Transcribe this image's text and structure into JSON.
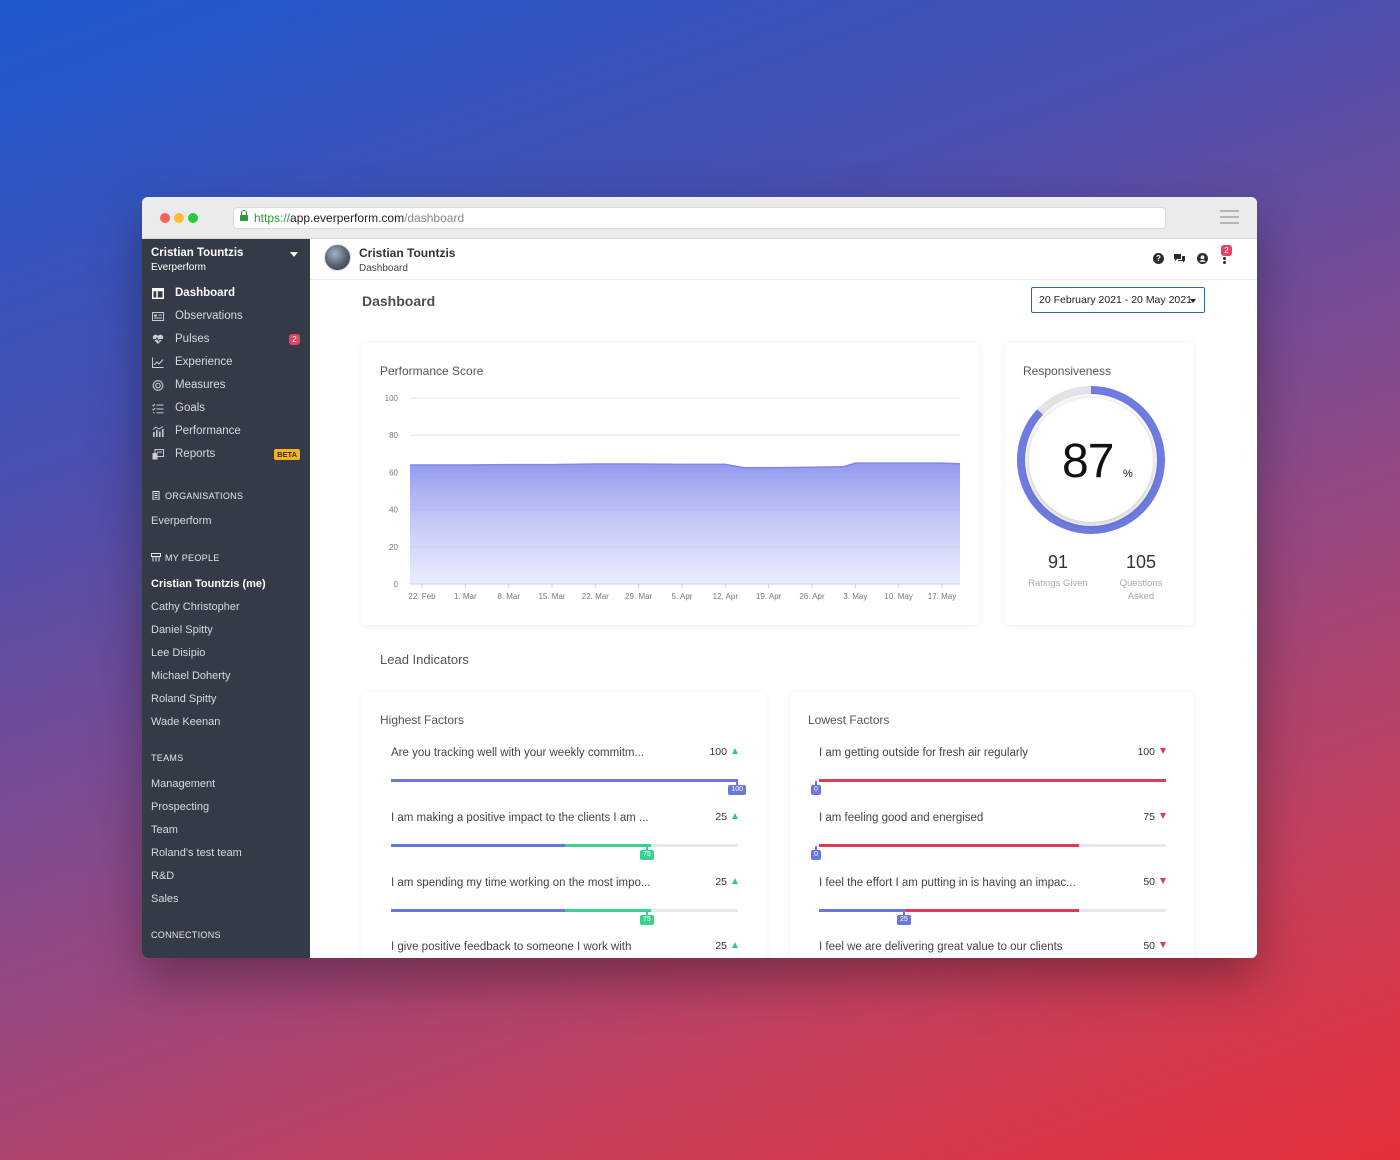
{
  "browser": {
    "url_scheme": "https://",
    "url_host": "app.everperform.com",
    "url_path": "/dashboard"
  },
  "sidebar": {
    "user_name": "Cristian Tountzis",
    "org_name": "Everperform",
    "nav": [
      {
        "label": "Dashboard",
        "icon": "dashboard-icon",
        "active": true
      },
      {
        "label": "Observations",
        "icon": "observations-icon"
      },
      {
        "label": "Pulses",
        "icon": "heart-pulse-icon",
        "badge": "2"
      },
      {
        "label": "Experience",
        "icon": "line-chart-icon"
      },
      {
        "label": "Measures",
        "icon": "target-icon"
      },
      {
        "label": "Goals",
        "icon": "list-check-icon"
      },
      {
        "label": "Performance",
        "icon": "bar-chart-icon"
      },
      {
        "label": "Reports",
        "icon": "reports-icon",
        "tag": "BETA"
      }
    ],
    "organisations_heading": "ORGANISATIONS",
    "organisations": [
      "Everperform"
    ],
    "people_heading": "MY PEOPLE",
    "people": [
      "Cristian Tountzis (me)",
      "Cathy Christopher",
      "Daniel Spitty",
      "Lee Disipio",
      "Michael Doherty",
      "Roland Spitty",
      "Wade Keenan"
    ],
    "teams_heading": "TEAMS",
    "teams": [
      "Management",
      "Prospecting",
      "Team",
      "Roland's test team",
      "R&D",
      "Sales"
    ],
    "connections_heading": "CONNECTIONS"
  },
  "topbar": {
    "name": "Cristian Tountzis",
    "subtitle": "Dashboard",
    "notification_count": "2"
  },
  "page": {
    "title": "Dashboard",
    "date_range": "20 February 2021 - 20 May 2021"
  },
  "performance": {
    "title": "Performance Score"
  },
  "chart_data": {
    "type": "area",
    "title": "Performance Score",
    "xlabel": "",
    "ylabel": "",
    "ylim": [
      0,
      100
    ],
    "yticks": [
      "100",
      "80",
      "60",
      "40",
      "20",
      "0"
    ],
    "xticks": [
      "22. Feb",
      "1. Mar",
      "8. Mar",
      "15. Mar",
      "22. Mar",
      "29. Mar",
      "5. Apr",
      "12. Apr",
      "19. Apr",
      "26. Apr",
      "3. May",
      "10. May",
      "17. May"
    ],
    "x": [
      "20. Feb",
      "22. Feb",
      "1. Mar",
      "8. Mar",
      "15. Mar",
      "22. Mar",
      "29. Mar",
      "5. Apr",
      "12. Apr",
      "15. Apr",
      "19. Apr",
      "26. Apr",
      "1. May",
      "3. May",
      "10. May",
      "17. May",
      "20. May"
    ],
    "values": [
      64,
      64,
      64,
      64.2,
      64.2,
      64.5,
      64.5,
      64.3,
      64.3,
      62.5,
      62.5,
      62.8,
      63,
      65,
      65,
      65,
      64.7
    ],
    "color": "#7d86ea",
    "grid": true
  },
  "responsiveness": {
    "title": "Responsiveness",
    "value": "87",
    "unit": "%",
    "fraction": 0.87,
    "ratings_given": "91",
    "ratings_label": "Ratings Given",
    "questions_asked": "105",
    "questions_label_1": "Questions",
    "questions_label_2": "Asked"
  },
  "lead_indicators": {
    "title": "Lead Indicators",
    "highest": {
      "title": "Highest Factors",
      "items": [
        {
          "text": "Are you tracking well with your weekly commitm...",
          "score": "100",
          "prev": null,
          "current": 100,
          "marker": "100"
        },
        {
          "text": "I am making a positive impact to the clients I am ...",
          "score": "25",
          "prev": 50,
          "current": 75,
          "marker": "75"
        },
        {
          "text": "I am spending my time working on the most impo...",
          "score": "25",
          "prev": 50,
          "current": 75,
          "marker": "75"
        },
        {
          "text": "I give positive feedback to someone I work with",
          "score": "25"
        }
      ]
    },
    "lowest": {
      "title": "Lowest Factors",
      "items": [
        {
          "text": "I am getting outside for fresh air regularly",
          "score": "100",
          "prev": 100,
          "current": 0,
          "marker": "0"
        },
        {
          "text": "I am feeling good and energised",
          "score": "75",
          "prev": 75,
          "current": 0,
          "marker": "0"
        },
        {
          "text": "I feel the effort I am putting in is having an impac...",
          "score": "50",
          "prev": 75,
          "current": 25,
          "marker": "25"
        },
        {
          "text": "I feel we are delivering great value to our clients",
          "score": "50"
        }
      ]
    }
  }
}
